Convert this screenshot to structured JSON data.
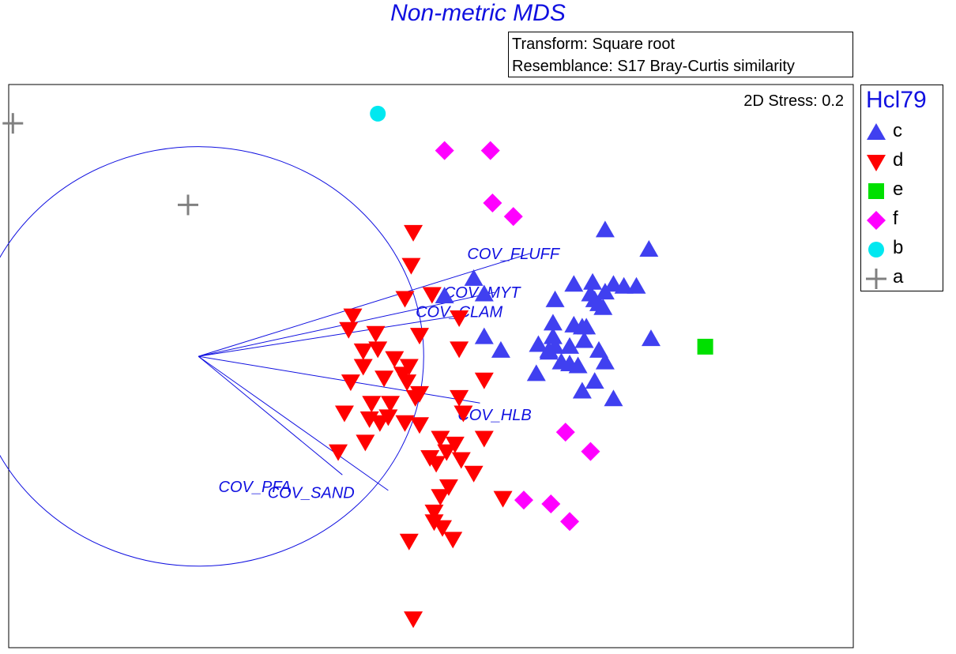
{
  "title": "Non-metric MDS",
  "info": {
    "transform": "Transform: Square root",
    "resemblance": "Resemblance: S17 Bray-Curtis similarity"
  },
  "stress_label": "2D Stress: 0.2",
  "colors": {
    "c": "#4040f0",
    "d": "#ff0000",
    "e": "#00e000",
    "f": "#ff00ff",
    "b": "#00e8f0",
    "a": "#808080",
    "vectors": "#1010e0"
  },
  "legend": {
    "title": "Hcl79",
    "items": [
      {
        "label": "c",
        "shape": "triangle-up",
        "color": "#4040f0"
      },
      {
        "label": "d",
        "shape": "triangle-down",
        "color": "#ff0000"
      },
      {
        "label": "e",
        "shape": "square",
        "color": "#00e000"
      },
      {
        "label": "f",
        "shape": "diamond",
        "color": "#ff00ff"
      },
      {
        "label": "b",
        "shape": "circle",
        "color": "#00e8f0"
      },
      {
        "label": "a",
        "shape": "plus",
        "color": "#808080"
      }
    ]
  },
  "chart_data": {
    "type": "scatter",
    "title": "Non-metric MDS",
    "stress": 0.2,
    "xlim": [
      -2.0,
      2.05
    ],
    "ylim": [
      -1.5,
      1.4
    ],
    "axes_visible": false,
    "grid": false,
    "legend_position": "right",
    "correlation_circle": {
      "center": [
        -1.09,
        0.0
      ],
      "radius": 1.08
    },
    "vectors": [
      {
        "name": "COV_FLUFF",
        "end": [
          0.5,
          0.53
        ],
        "label_at": [
          0.42,
          0.53
        ]
      },
      {
        "name": "COV_MYT",
        "end": [
          0.33,
          0.33
        ],
        "label_at": [
          0.27,
          0.33
        ]
      },
      {
        "name": "COV_CLAM",
        "end": [
          0.16,
          0.21
        ],
        "label_at": [
          0.16,
          0.23
        ]
      },
      {
        "name": "COV_HLB",
        "end": [
          0.26,
          -0.24
        ],
        "label_at": [
          0.33,
          -0.3
        ]
      },
      {
        "name": "COV_PFA",
        "end": [
          -0.4,
          -0.61
        ],
        "label_at": [
          -0.82,
          -0.67
        ]
      },
      {
        "name": "COV_SAND",
        "end": [
          -0.18,
          -0.69
        ],
        "label_at": [
          -0.55,
          -0.7
        ]
      }
    ],
    "series": [
      {
        "name": "c",
        "shape": "triangle-up",
        "points": [
          [
            0.86,
            0.65
          ],
          [
            1.07,
            0.55
          ],
          [
            0.23,
            0.4
          ],
          [
            0.71,
            0.37
          ],
          [
            0.8,
            0.38
          ],
          [
            0.9,
            0.37
          ],
          [
            0.95,
            0.36
          ],
          [
            0.86,
            0.33
          ],
          [
            0.79,
            0.32
          ],
          [
            0.81,
            0.29
          ],
          [
            0.28,
            0.32
          ],
          [
            1.01,
            0.36
          ],
          [
            0.83,
            0.27
          ],
          [
            0.62,
            0.29
          ],
          [
            0.85,
            0.25
          ],
          [
            0.61,
            0.17
          ],
          [
            0.71,
            0.16
          ],
          [
            0.77,
            0.15
          ],
          [
            0.75,
            0.15
          ],
          [
            0.61,
            0.1
          ],
          [
            0.62,
            0.05
          ],
          [
            0.54,
            0.06
          ],
          [
            0.73,
            -0.05
          ],
          [
            1.08,
            0.09
          ],
          [
            0.83,
            0.03
          ],
          [
            0.76,
            0.08
          ],
          [
            0.59,
            0.03
          ],
          [
            0.59,
            0.02
          ],
          [
            0.65,
            -0.03
          ],
          [
            0.69,
            -0.04
          ],
          [
            0.86,
            -0.03
          ],
          [
            0.36,
            0.03
          ],
          [
            0.69,
            0.05
          ],
          [
            0.53,
            -0.09
          ],
          [
            0.81,
            -0.13
          ],
          [
            0.09,
            0.31
          ],
          [
            0.28,
            0.1
          ],
          [
            0.75,
            -0.18
          ],
          [
            0.9,
            -0.22
          ]
        ]
      },
      {
        "name": "d",
        "shape": "triangle-down",
        "points": [
          [
            -0.06,
            0.64
          ],
          [
            -0.07,
            0.47
          ],
          [
            0.03,
            0.32
          ],
          [
            -0.1,
            0.3
          ],
          [
            0.16,
            0.2
          ],
          [
            -0.35,
            0.21
          ],
          [
            -0.37,
            0.14
          ],
          [
            -0.24,
            0.12
          ],
          [
            -0.03,
            0.11
          ],
          [
            -0.23,
            0.04
          ],
          [
            -0.3,
            0.03
          ],
          [
            0.16,
            0.04
          ],
          [
            -0.3,
            -0.05
          ],
          [
            -0.15,
            -0.01
          ],
          [
            -0.08,
            -0.05
          ],
          [
            -0.36,
            -0.13
          ],
          [
            -0.2,
            -0.11
          ],
          [
            -0.11,
            -0.09
          ],
          [
            -0.17,
            -0.24
          ],
          [
            -0.09,
            -0.13
          ],
          [
            -0.03,
            -0.19
          ],
          [
            -0.05,
            -0.21
          ],
          [
            0.16,
            -0.21
          ],
          [
            0.28,
            -0.12
          ],
          [
            -0.27,
            -0.32
          ],
          [
            -0.18,
            -0.31
          ],
          [
            -0.1,
            -0.34
          ],
          [
            -0.22,
            -0.34
          ],
          [
            -0.03,
            -0.35
          ],
          [
            -0.39,
            -0.29
          ],
          [
            -0.26,
            -0.24
          ],
          [
            0.18,
            -0.29
          ],
          [
            0.28,
            -0.42
          ],
          [
            0.07,
            -0.42
          ],
          [
            0.14,
            -0.45
          ],
          [
            -0.42,
            -0.49
          ],
          [
            -0.29,
            -0.44
          ],
          [
            0.02,
            -0.52
          ],
          [
            0.1,
            -0.49
          ],
          [
            0.17,
            -0.53
          ],
          [
            0.23,
            -0.6
          ],
          [
            0.05,
            -0.55
          ],
          [
            0.11,
            -0.67
          ],
          [
            0.07,
            -0.72
          ],
          [
            0.04,
            -0.8
          ],
          [
            0.37,
            -0.73
          ],
          [
            0.04,
            -0.85
          ],
          [
            0.08,
            -0.88
          ],
          [
            0.13,
            -0.94
          ],
          [
            -0.08,
            -0.95
          ],
          [
            -0.06,
            -1.35
          ]
        ]
      },
      {
        "name": "e",
        "shape": "square",
        "points": [
          [
            1.34,
            0.05
          ]
        ]
      },
      {
        "name": "f",
        "shape": "diamond",
        "points": [
          [
            0.09,
            1.06
          ],
          [
            0.31,
            1.06
          ],
          [
            0.32,
            0.79
          ],
          [
            0.42,
            0.72
          ],
          [
            0.67,
            -0.39
          ],
          [
            0.79,
            -0.49
          ],
          [
            0.47,
            -0.74
          ],
          [
            0.6,
            -0.76
          ],
          [
            0.69,
            -0.85
          ]
        ]
      },
      {
        "name": "b",
        "shape": "circle",
        "points": [
          [
            -0.23,
            1.25
          ]
        ]
      },
      {
        "name": "a",
        "shape": "plus",
        "points": [
          [
            -1.98,
            1.2
          ],
          [
            -1.14,
            0.78
          ]
        ]
      }
    ]
  }
}
